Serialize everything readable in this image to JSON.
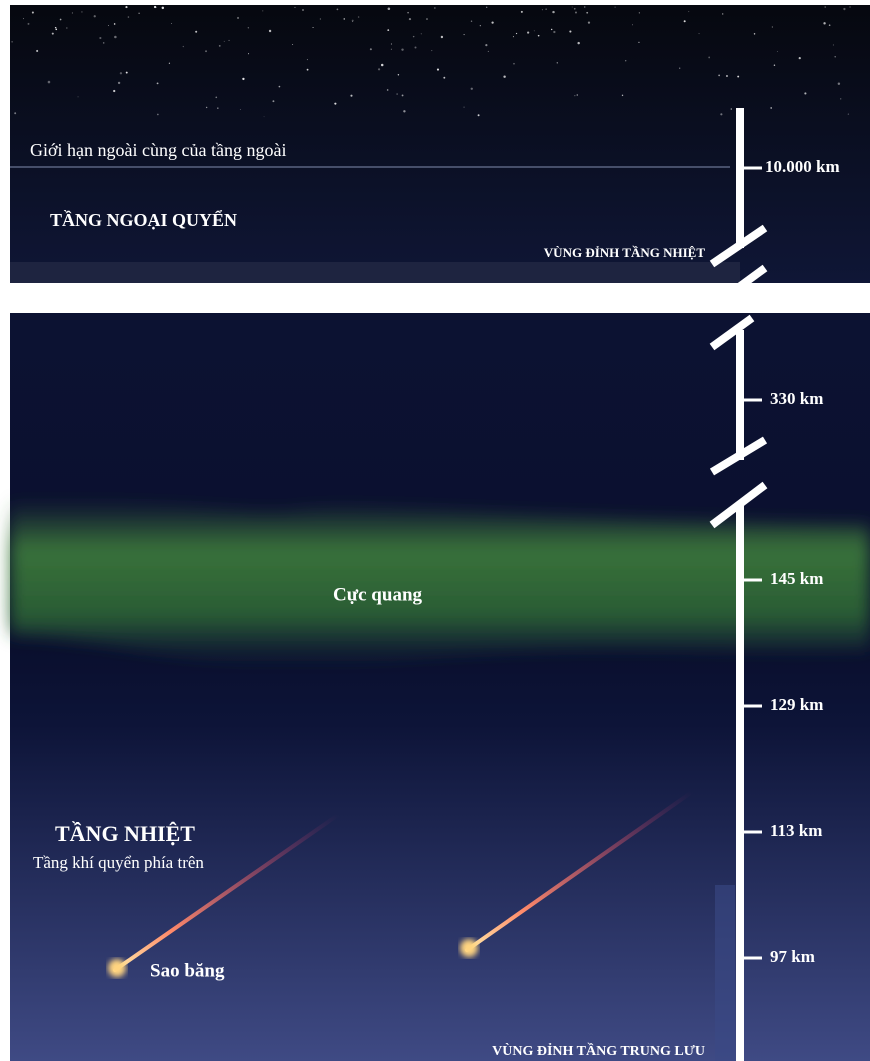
{
  "top": {
    "boundary_label": "Giới hạn ngoài cùng của tầng ngoài",
    "layer_title": "TẦNG NGOẠI QUYỂN",
    "bottom_label": "VÙNG ĐỈNH TẦNG NHIỆT"
  },
  "scale": {
    "labels": [
      "10.000 km",
      "330 km",
      "145 km",
      "129 km",
      "113 km",
      "97 km"
    ]
  },
  "bottom": {
    "aurora": "Cực quang",
    "layer_title": "TẦNG NHIỆT",
    "layer_subtitle": "Tầng khí quyển phía trên",
    "meteor": "Sao băng",
    "bottom_label": "VÙNG ĐỈNH TẦNG TRUNG LƯU"
  }
}
